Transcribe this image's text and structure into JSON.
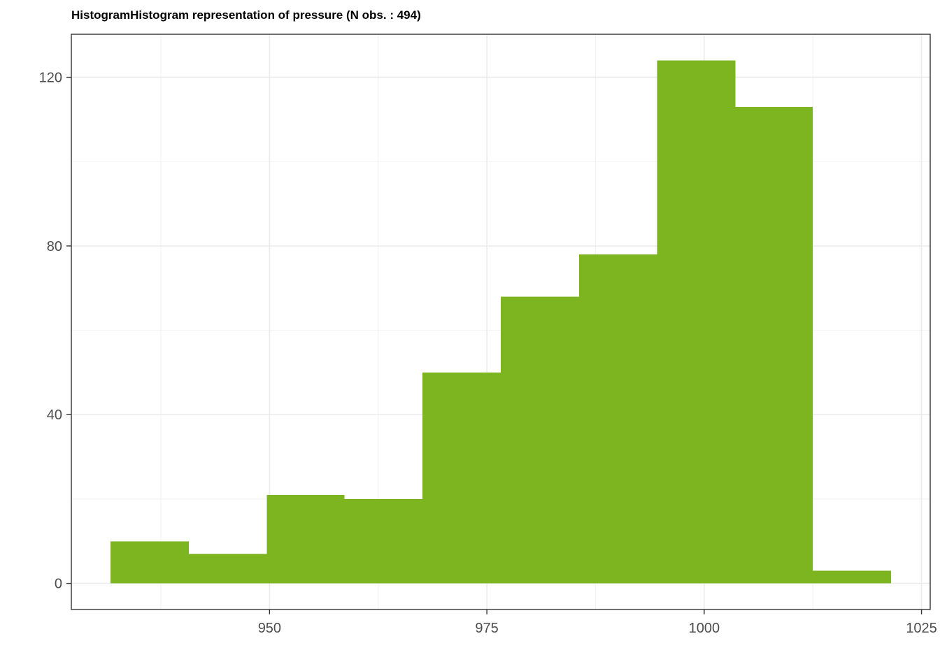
{
  "chart_data": {
    "type": "bar",
    "title": "HistogramHistogram representation of pressure (N obs. : 494)",
    "xlabel": "",
    "ylabel": "",
    "bin_edges": [
      931.7,
      940.7,
      949.7,
      958.6,
      967.6,
      976.6,
      985.6,
      994.6,
      1003.6,
      1012.5,
      1021.5
    ],
    "values": [
      10,
      7,
      21,
      20,
      50,
      68,
      78,
      124,
      113,
      3
    ],
    "xlim": [
      927.2,
      1026.0
    ],
    "ylim": [
      -6.2,
      130.2
    ],
    "x_ticks": [
      950,
      975,
      1000,
      1025
    ],
    "x_tick_labels": [
      "950",
      "975",
      "1000",
      "1025"
    ],
    "y_ticks": [
      0,
      40,
      80,
      120
    ],
    "y_tick_labels": [
      "0",
      "40",
      "80",
      "120"
    ],
    "grid": true,
    "bar_color": "#7CB51F"
  }
}
